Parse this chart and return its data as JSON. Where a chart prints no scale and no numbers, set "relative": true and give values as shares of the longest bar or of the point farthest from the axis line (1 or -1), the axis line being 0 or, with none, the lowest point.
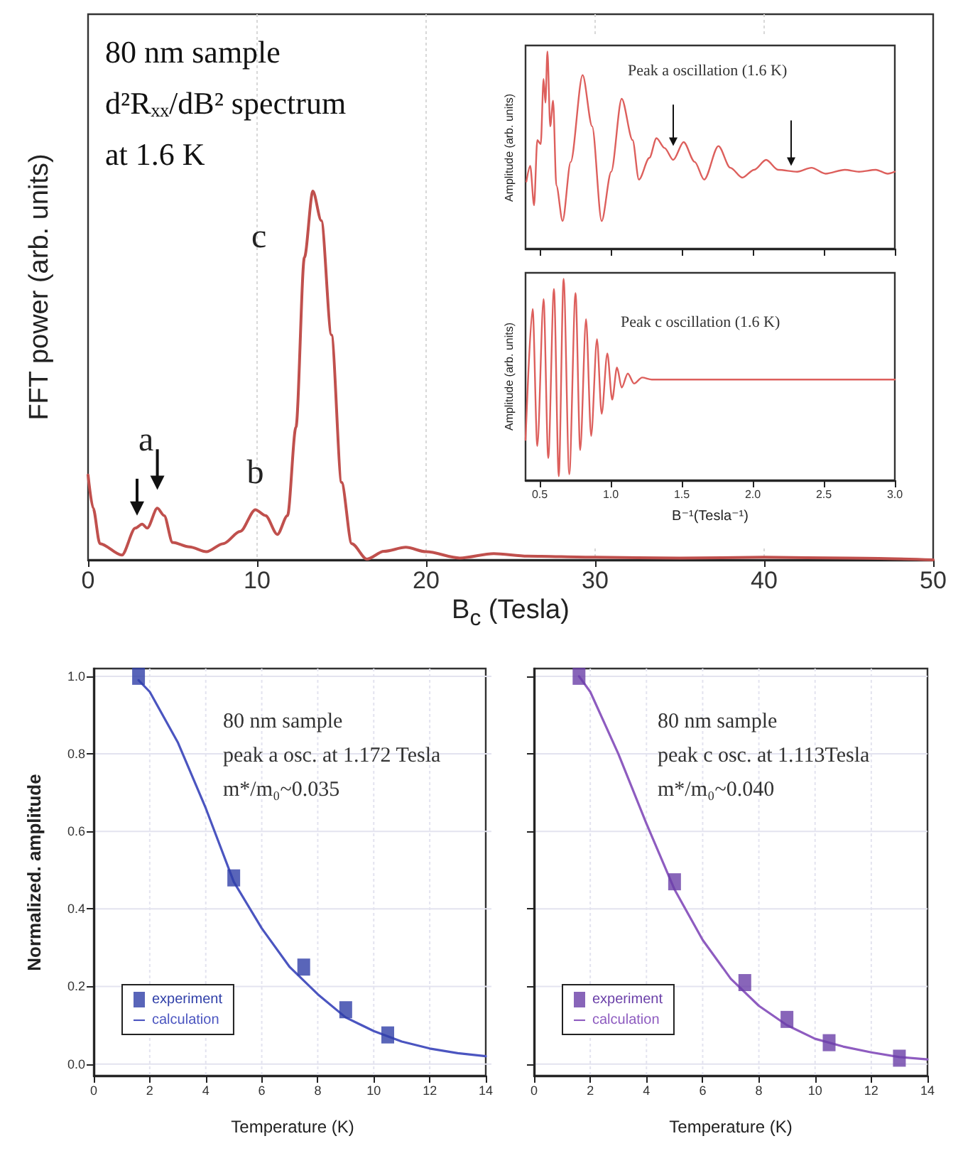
{
  "chart_data": [
    {
      "type": "line",
      "relative": true,
      "xlabel": "B$_{c}$ (Tesla)",
      "ylabel": "FFT power (arb. units)",
      "x": [
        0,
        0.3,
        0.7,
        2,
        2.8,
        3.2,
        3.5,
        4.1,
        4.5,
        5,
        6,
        7,
        8,
        9,
        9.9,
        10.5,
        11.2,
        11.8,
        12.3,
        12.8,
        13.3,
        13.8,
        14.4,
        15,
        15.6,
        16.5,
        17.5,
        18.8,
        20,
        22,
        24,
        26,
        30,
        35,
        40,
        45,
        50
      ],
      "series": [
        {
          "color": "#c0504d",
          "values": [
            0.23,
            0.14,
            0.044,
            0.013,
            0.086,
            0.097,
            0.086,
            0.14,
            0.12,
            0.047,
            0.035,
            0.022,
            0.044,
            0.077,
            0.136,
            0.12,
            0.069,
            0.12,
            0.36,
            0.82,
            1,
            0.92,
            0.61,
            0.21,
            0.044,
            0.002,
            0.023,
            0.034,
            0.022,
            0.005,
            0.017,
            0.01,
            0.007,
            0.005,
            0.007,
            0.005,
            0
          ]
        }
      ],
      "xlim": [
        0,
        50
      ],
      "xticks": [
        0,
        10,
        20,
        30,
        40,
        50
      ],
      "grid": "x",
      "annotations": [
        "80 nm sample",
        "d²Rₓₓ/dB² spectrum",
        "at 1.6 K",
        {
          "text": "a",
          "x": 4.1,
          "y": 0.14
        },
        {
          "text": "b",
          "x": 9.9,
          "y": 0.136
        },
        {
          "text": "c",
          "x": 13.3,
          "y": 1
        }
      ]
    },
    {
      "type": "line",
      "relative": true,
      "ylabel": "Amplitude (arb. units)",
      "x": [
        0.406,
        0.433,
        0.46,
        0.483,
        0.507,
        0.527,
        0.54,
        0.554,
        0.574,
        0.594,
        0.617,
        0.661,
        0.718,
        0.802,
        0.869,
        0.936,
        1.003,
        1.077,
        1.154,
        1.198,
        1.272,
        1.322,
        1.379,
        1.44,
        1.513,
        1.591,
        1.658,
        1.758,
        1.842,
        1.926,
        2.01,
        2.094,
        2.178,
        2.312,
        2.413,
        2.513,
        2.648,
        2.748,
        2.866,
        2.95,
        3.0
      ],
      "series": [
        {
          "color": "#dd5f5c",
          "values": [
            0.34,
            0.42,
            0.22,
            0.55,
            0.53,
            0.86,
            0.74,
            1,
            0.62,
            0.75,
            0.32,
            0.14,
            0.44,
            0.88,
            0.62,
            0.14,
            0.39,
            0.76,
            0.55,
            0.35,
            0.46,
            0.56,
            0.51,
            0.45,
            0.54,
            0.44,
            0.35,
            0.52,
            0.41,
            0.36,
            0.4,
            0.45,
            0.4,
            0.39,
            0.41,
            0.38,
            0.4,
            0.39,
            0.4,
            0.38,
            0.39
          ]
        }
      ],
      "xlim": [
        0.4,
        3.0
      ],
      "xticks": [
        0.5,
        1,
        1.5,
        2,
        2.5,
        3
      ],
      "tick_labels": false,
      "annotations": [
        "Peak a oscillation (1.6 K)"
      ]
    },
    {
      "type": "line",
      "relative": true,
      "ylabel": "Amplitude (arb. units)",
      "xlabel": "B⁻¹(Tesla⁻¹)",
      "x": [
        0.4,
        0.45,
        0.483,
        0.527,
        0.56,
        0.6,
        0.634,
        0.668,
        0.708,
        0.752,
        0.785,
        0.826,
        0.862,
        0.903,
        0.936,
        0.976,
        1.01,
        1.044,
        1.077,
        1.12,
        1.164,
        1.221,
        1.289,
        1.372,
        1.5,
        2.0,
        2.5,
        3.0
      ],
      "series": [
        {
          "color": "#dd5f5c",
          "values": [
            0.2,
            0.85,
            0.17,
            0.9,
            0.11,
            0.95,
            0.02,
            1,
            0.03,
            0.93,
            0.15,
            0.8,
            0.22,
            0.7,
            0.33,
            0.63,
            0.4,
            0.56,
            0.46,
            0.53,
            0.48,
            0.51,
            0.5,
            0.5,
            0.5,
            0.5,
            0.5,
            0.5
          ]
        }
      ],
      "xlim": [
        0.4,
        3.0
      ],
      "xticks": [
        0.5,
        {
          "value": 1,
          "label": "1.0"
        },
        1.5,
        {
          "value": 2,
          "label": "2.0"
        },
        2.5,
        {
          "value": 3,
          "label": "3.0"
        }
      ],
      "annotations": [
        "Peak c oscillation (1.6 K)"
      ]
    },
    {
      "type": "line",
      "xlabel": "Temperature (K)",
      "ylabel": "Normalized. amplitude",
      "series": [
        {
          "name": "experiment",
          "type": "scatter",
          "marker": "square",
          "color": "#2f3fa8",
          "x": [
            1.6,
            5,
            7.5,
            9,
            10.5
          ],
          "values": [
            1.0,
            0.48,
            0.25,
            0.14,
            0.075
          ]
        },
        {
          "name": "calculation",
          "color": "#4b55c0",
          "x": [
            1.6,
            2,
            3,
            4,
            5,
            6,
            7,
            8,
            9,
            10,
            11,
            12,
            13,
            14
          ],
          "values": [
            0.99,
            0.96,
            0.83,
            0.66,
            0.47,
            0.35,
            0.25,
            0.18,
            0.12,
            0.085,
            0.058,
            0.04,
            0.028,
            0.02
          ]
        }
      ],
      "xlim": [
        0,
        14
      ],
      "xticks": [
        0,
        2,
        4,
        6,
        8,
        10,
        12,
        14
      ],
      "ylim": [
        -0.03,
        1.02
      ],
      "yticks": [
        {
          "value": 0,
          "label": "0.0"
        },
        0.2,
        0.4,
        0.6,
        0.8,
        {
          "value": 1,
          "label": "1.0"
        }
      ],
      "grid": true,
      "legend": "bottom left",
      "annotations": [
        "80 nm sample",
        "peak a osc. at 1.172 Tesla",
        "m*/m₀~0.035"
      ]
    },
    {
      "type": "line",
      "xlabel": "Temperature (K)",
      "series": [
        {
          "name": "experiment",
          "type": "scatter",
          "marker": "square",
          "color": "#6a3fa8",
          "x": [
            1.6,
            5,
            7.5,
            9,
            10.5,
            13
          ],
          "values": [
            1.0,
            0.47,
            0.21,
            0.115,
            0.055,
            0.015
          ]
        },
        {
          "name": "calculation",
          "color": "#8e5cc0",
          "x": [
            1.6,
            2,
            3,
            4,
            5,
            6,
            7,
            8,
            9,
            10,
            11,
            12,
            13,
            14
          ],
          "values": [
            1.0,
            0.96,
            0.8,
            0.62,
            0.45,
            0.32,
            0.22,
            0.15,
            0.1,
            0.065,
            0.045,
            0.03,
            0.018,
            0.012
          ]
        }
      ],
      "xlim": [
        0,
        14
      ],
      "xticks": [
        0,
        2,
        4,
        6,
        8,
        10,
        12,
        14
      ],
      "ylim": [
        -0.03,
        1.02
      ],
      "yticks": [
        0,
        0.2,
        0.4,
        0.6,
        0.8,
        1
      ],
      "tick_labels": "x",
      "grid": true,
      "legend": "bottom left",
      "annotations": [
        "80 nm sample",
        "peak c osc. at 1.113Tesla",
        "m*/m₀~0.040"
      ]
    }
  ]
}
